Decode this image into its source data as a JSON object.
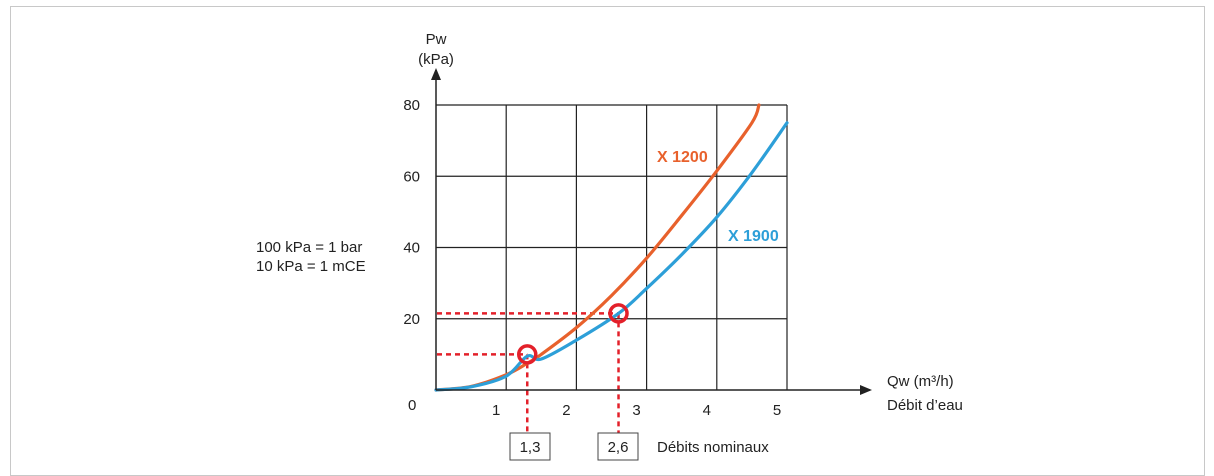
{
  "chart_data": {
    "type": "line",
    "y_label_line1": "Pw",
    "y_label_line2": "(kPa)",
    "x_label_line1": "Qw (m³/h)",
    "x_label_line2": "Débit d’eau",
    "origin_label": "0",
    "xlim": [
      0,
      5
    ],
    "ylim": [
      0,
      80
    ],
    "x_ticks": [
      "1",
      "2",
      "3",
      "4",
      "5"
    ],
    "y_ticks": [
      "20",
      "40",
      "60",
      "80"
    ],
    "grid": true,
    "series": [
      {
        "name": "X 1200",
        "color": "#e8612c",
        "x": [
          0,
          0.5,
          1,
          1.3,
          1.5,
          2,
          2.5,
          3,
          3.5,
          4,
          4.5,
          4.6
        ],
        "y": [
          0,
          1.0,
          4.3,
          7.5,
          10.0,
          17.5,
          26.5,
          37.0,
          49.0,
          61.5,
          75.0,
          80.0
        ]
      },
      {
        "name": "X 1900",
        "color": "#2d9fd8",
        "x": [
          0,
          0.5,
          1,
          1.3,
          1.5,
          2,
          2.6,
          3,
          3.5,
          4,
          4.5,
          5
        ],
        "y": [
          0,
          0.9,
          3.9,
          9.5,
          8.7,
          14.0,
          21.5,
          28.5,
          38.0,
          48.5,
          61.0,
          75.0
        ]
      }
    ],
    "points": [
      {
        "x": 1.3,
        "y": 10,
        "label": "1,3"
      },
      {
        "x": 2.6,
        "y": 21.5,
        "label": "2,6"
      }
    ],
    "nominal_label": "Débits nominaux",
    "highlight_color": "#e3202a"
  },
  "note": {
    "line1": "100 kPa = 1 bar",
    "line2": "10 kPa = 1 mCE"
  }
}
